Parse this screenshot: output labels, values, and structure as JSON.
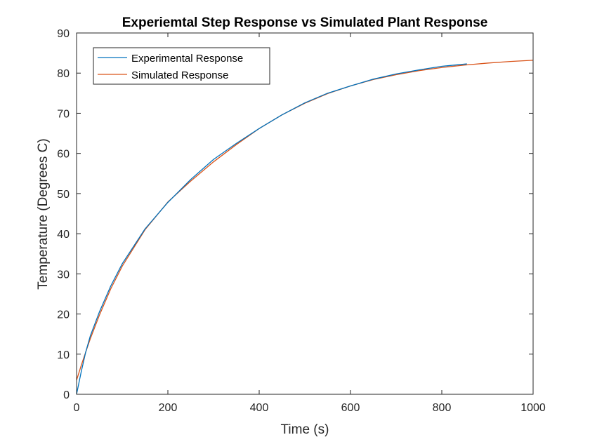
{
  "chart_data": {
    "type": "line",
    "title": "Experiemtal Step Response vs Simulated Plant Response",
    "xlabel": "Time (s)",
    "ylabel": "Temperature (Degrees C)",
    "xlim": [
      0,
      1000
    ],
    "ylim": [
      0,
      90
    ],
    "xticks": [
      0,
      200,
      400,
      600,
      800,
      1000
    ],
    "yticks": [
      0,
      10,
      20,
      30,
      40,
      50,
      60,
      70,
      80,
      90
    ],
    "grid": false,
    "legend_position": "top-left",
    "series": [
      {
        "name": "Experimental Response",
        "color": "#0072BD",
        "x": [
          0,
          10,
          20,
          30,
          50,
          75,
          100,
          150,
          200,
          250,
          300,
          350,
          400,
          450,
          500,
          550,
          600,
          650,
          700,
          750,
          800,
          855
        ],
        "y": [
          0,
          5.5,
          10.5,
          14.5,
          20.5,
          27,
          32.5,
          41.2,
          47.8,
          53.5,
          58.5,
          62.5,
          66.2,
          69.6,
          72.6,
          75.0,
          76.8,
          78.5,
          79.8,
          80.8,
          81.7,
          82.3
        ]
      },
      {
        "name": "Simulated Response",
        "color": "#D95319",
        "x": [
          0,
          10,
          20,
          30,
          50,
          75,
          100,
          150,
          200,
          250,
          300,
          350,
          400,
          450,
          500,
          550,
          600,
          650,
          700,
          750,
          800,
          850,
          900,
          950,
          1000
        ],
        "y": [
          3.5,
          7.1,
          10.5,
          13.8,
          19.7,
          26.3,
          31.9,
          41.0,
          47.9,
          53.1,
          57.9,
          62.2,
          66.2,
          69.6,
          72.5,
          74.9,
          76.8,
          78.4,
          79.6,
          80.6,
          81.4,
          82.0,
          82.5,
          82.9,
          83.2
        ]
      }
    ]
  }
}
